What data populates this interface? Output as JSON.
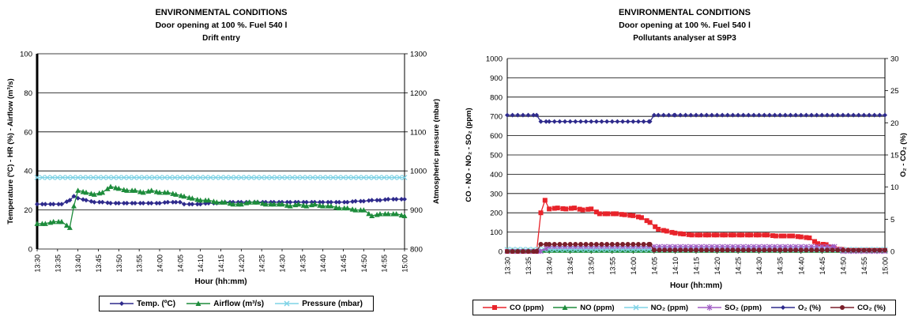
{
  "chart_data": [
    {
      "type": "line",
      "title": "ENVIRONMENTAL CONDITIONS",
      "subtitle": "Door opening at 100 %. Fuel 540 l",
      "subtitle2": "Drift entry",
      "xlabel": "Hour (hh:mm)",
      "ylabel": "Temperature (ºC) - HR (%) - Airflow (m³/s)",
      "ylabel_right": "Atmospheric pressure (mbar)",
      "ylim": [
        0,
        100
      ],
      "ylim_right": [
        800,
        1300
      ],
      "yticks": [
        "0",
        "20",
        "40",
        "60",
        "80",
        "100"
      ],
      "yticks_right": [
        "800",
        "900",
        "1000",
        "1100",
        "1200",
        "1300"
      ],
      "categories": [
        "13:30",
        "13:35",
        "13:40",
        "13:45",
        "13:50",
        "13:55",
        "14:00",
        "14:05",
        "14:10",
        "14:15",
        "14:20",
        "14:25",
        "14:30",
        "14:35",
        "14:40",
        "14:45",
        "14:50",
        "14:55",
        "15:00"
      ],
      "grid": true,
      "legend_position": "bottom",
      "series": [
        {
          "name": "Temp. (ºC)",
          "axis": "left",
          "color": "#2e2a8c",
          "marker": "diamond",
          "x": [
            0,
            2,
            4,
            6,
            8,
            9,
            10,
            12,
            14,
            16,
            18,
            20,
            22,
            24,
            26,
            28,
            30,
            32,
            34,
            35,
            36,
            38,
            40,
            42,
            44,
            46,
            48,
            50,
            52,
            54,
            56,
            58,
            60,
            62,
            64,
            66,
            68,
            70,
            72,
            74,
            76,
            78,
            80,
            82,
            84,
            86,
            88,
            90
          ],
          "values": [
            23,
            23,
            23,
            23,
            25,
            27,
            26,
            25,
            24,
            24,
            23.5,
            23.5,
            23.5,
            23.5,
            23.5,
            23.5,
            23.5,
            24,
            24,
            24,
            23,
            23,
            23,
            23.5,
            23.5,
            24,
            24,
            24,
            24,
            24,
            24,
            24,
            24,
            24,
            24,
            24,
            24,
            24,
            24,
            24,
            24,
            24.5,
            24.5,
            25,
            25,
            25.5,
            25.5,
            25.5
          ]
        },
        {
          "name": "Airflow (m³/s)",
          "axis": "left",
          "color": "#1e8c3c",
          "marker": "triangle",
          "x": [
            0,
            2,
            4,
            6,
            8,
            9,
            10,
            12,
            14,
            16,
            18,
            20,
            22,
            24,
            26,
            28,
            30,
            32,
            34,
            36,
            38,
            40,
            42,
            44,
            46,
            48,
            50,
            52,
            54,
            56,
            58,
            60,
            62,
            64,
            66,
            68,
            70,
            72,
            74,
            76,
            78,
            80,
            82,
            84,
            86,
            88,
            90
          ],
          "values": [
            13,
            13,
            14,
            14,
            11,
            22,
            30,
            29,
            28,
            29,
            32,
            31,
            30,
            30,
            29,
            30,
            29,
            29,
            28,
            27,
            26,
            25,
            25,
            24,
            24,
            23,
            23,
            24,
            24,
            23,
            23,
            23,
            22,
            23,
            22,
            23,
            22,
            22,
            21,
            21,
            20,
            20,
            17,
            18,
            18,
            18,
            17
          ]
        },
        {
          "name": "Pressure (mbar)",
          "axis": "right",
          "color": "#7fd3e6",
          "marker": "x",
          "x": [
            0,
            90
          ],
          "values": [
            983,
            983
          ]
        }
      ]
    },
    {
      "type": "line",
      "title": "ENVIRONMENTAL CONDITIONS",
      "subtitle": "Door opening at 100 %. Fuel 540 l",
      "subtitle2": "Pollutants analyser at S9P3",
      "xlabel": "Hour (hh:mm)",
      "ylabel": "CO - NO - NO₂ - SO₂ (ppm)",
      "ylabel_right": "O₂ - CO₂ (%)",
      "ylim": [
        0,
        1000
      ],
      "ylim_right": [
        0,
        30
      ],
      "yticks": [
        "0",
        "100",
        "200",
        "300",
        "400",
        "500",
        "600",
        "700",
        "800",
        "900",
        "1000"
      ],
      "yticks_right": [
        "0",
        "5",
        "10",
        "15",
        "20",
        "25",
        "30"
      ],
      "categories": [
        "13:30",
        "13:35",
        "13:40",
        "13:45",
        "13:50",
        "13:55",
        "14:00",
        "14:05",
        "14:10",
        "14:15",
        "14:20",
        "14:25",
        "14:30",
        "14:35",
        "14:40",
        "14:45",
        "14:50",
        "14:55",
        "15:00"
      ],
      "grid": true,
      "legend_position": "bottom",
      "series": [
        {
          "name": "CO (ppm)",
          "axis": "left",
          "color": "#e8232a",
          "marker": "square",
          "x": [
            0,
            4,
            7,
            8,
            9,
            10,
            12,
            14,
            16,
            18,
            20,
            22,
            24,
            26,
            28,
            30,
            32,
            34,
            36,
            38,
            40,
            42,
            44,
            46,
            48,
            50,
            52,
            54,
            56,
            58,
            60,
            62,
            64,
            66,
            68,
            70,
            72,
            74,
            76,
            78,
            80,
            82,
            84,
            86,
            88,
            90
          ],
          "values": [
            0,
            0,
            0,
            200,
            265,
            220,
            225,
            220,
            225,
            215,
            220,
            195,
            195,
            195,
            190,
            185,
            175,
            150,
            115,
            105,
            95,
            90,
            85,
            85,
            85,
            85,
            85,
            85,
            85,
            85,
            85,
            85,
            80,
            80,
            80,
            75,
            70,
            40,
            35,
            15,
            10,
            5,
            5,
            5,
            5,
            5
          ]
        },
        {
          "name": "NO (ppm)",
          "axis": "left",
          "color": "#1e8c3c",
          "marker": "triangle",
          "x": [
            0,
            90
          ],
          "values": [
            5,
            5
          ]
        },
        {
          "name": "NO₂ (ppm)",
          "axis": "left",
          "color": "#7fd3e6",
          "marker": "x",
          "x": [
            0,
            90
          ],
          "values": [
            10,
            10
          ]
        },
        {
          "name": "SO₂ (ppm)",
          "axis": "left",
          "color": "#a05cc4",
          "marker": "star",
          "x": [
            0,
            8,
            10,
            20,
            30,
            40,
            50,
            60,
            70,
            78,
            80,
            90
          ],
          "values": [
            0,
            0,
            25,
            25,
            25,
            25,
            25,
            25,
            25,
            25,
            0,
            0
          ]
        },
        {
          "name": "O₂ (%)",
          "axis": "right",
          "color": "#2e2a8c",
          "marker": "diamond",
          "x": [
            0,
            7,
            8,
            10,
            20,
            30,
            34,
            35,
            36,
            40,
            50,
            60,
            70,
            80,
            90
          ],
          "values": [
            21.2,
            21.2,
            20.2,
            20.2,
            20.2,
            20.2,
            20.2,
            21.2,
            21.2,
            21.2,
            21.2,
            21.2,
            21.2,
            21.2,
            21.2
          ]
        },
        {
          "name": "CO₂ (%)",
          "axis": "right",
          "color": "#7a1f2a",
          "marker": "circle",
          "x": [
            0,
            7,
            8,
            10,
            20,
            30,
            34,
            35,
            40,
            50,
            60,
            70,
            80,
            90
          ],
          "values": [
            0,
            0,
            1.1,
            1.1,
            1.1,
            1.1,
            1.1,
            0.2,
            0.2,
            0.2,
            0.2,
            0.2,
            0.2,
            0.2
          ]
        }
      ]
    }
  ]
}
